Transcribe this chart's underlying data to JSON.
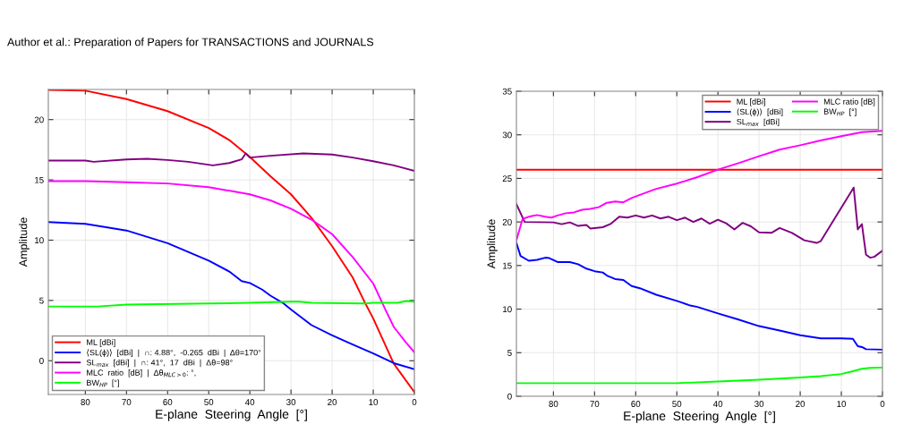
{
  "chart_data": [
    {
      "type": "line",
      "xlabel": "E-plane  Steering  Angle  [°]",
      "ylabel": "Amplitude",
      "xlim": [
        89,
        0
      ],
      "ylim": [
        -2.8,
        22.5
      ],
      "xticks": [
        80,
        70,
        60,
        50,
        40,
        30,
        20,
        10,
        0
      ],
      "yticks": [
        0,
        5,
        10,
        15,
        20
      ],
      "grid": true,
      "legend": "bottom left",
      "annotations": [
        "Author et al.: Preparation of Papers for TRANSACTIONS and JOURNALS"
      ],
      "series": [
        {
          "name": "ML [dBi]",
          "color": "#ff0000",
          "x": [
            89,
            80,
            70,
            60,
            50,
            45,
            40,
            35,
            30,
            25,
            20,
            15,
            12,
            10,
            5,
            0
          ],
          "values": [
            22.47,
            22.4,
            21.7,
            20.7,
            19.3,
            18.3,
            16.9,
            15.3,
            13.8,
            11.85,
            9.5,
            6.9,
            4.8,
            3.5,
            -0.25,
            -2.6
          ]
        },
        {
          "name": "⟨SL(ϕ)⟩  [dBi]  |  ∩: 4.88°,  -0.265  dBi  |  Δθ=170°",
          "color": "#0000ff",
          "x": [
            89,
            80,
            70,
            60,
            50,
            45,
            42,
            40,
            37,
            35,
            32,
            30,
            25,
            20,
            15,
            10,
            5,
            0
          ],
          "values": [
            11.5,
            11.35,
            10.8,
            9.75,
            8.3,
            7.4,
            6.6,
            6.45,
            5.9,
            5.4,
            4.8,
            4.25,
            2.95,
            2.1,
            1.35,
            0.6,
            -0.2,
            -0.7
          ]
        },
        {
          "name": "SL$_{max}$  [dBi]  |  ∩: 41°,  17  dBi  |  Δθ=98°",
          "color": "#800080",
          "x": [
            89,
            80,
            78,
            70,
            65,
            60,
            55,
            49,
            45,
            42,
            41,
            40,
            35,
            27,
            20,
            15,
            10,
            5,
            0
          ],
          "values": [
            16.6,
            16.6,
            16.5,
            16.7,
            16.75,
            16.65,
            16.5,
            16.2,
            16.4,
            16.7,
            17.2,
            16.85,
            17.0,
            17.2,
            17.1,
            16.85,
            16.55,
            16.2,
            15.75
          ]
        },
        {
          "name": "MLC  ratio  [dB]  |  Δθ$_{MLC>0}$: °,",
          "color": "#ff00ff",
          "x": [
            89,
            80,
            70,
            60,
            50,
            40,
            35,
            30,
            25,
            20,
            15,
            10,
            7,
            5,
            2,
            0
          ],
          "values": [
            14.9,
            14.9,
            14.8,
            14.7,
            14.4,
            13.8,
            13.3,
            12.6,
            11.7,
            10.5,
            8.6,
            6.4,
            4.2,
            2.8,
            1.5,
            0.7
          ]
        },
        {
          "name": "BW$_{HP}$  [°]",
          "color": "#00ff00",
          "x": [
            89,
            77,
            70,
            50,
            40,
            30,
            28,
            25,
            12,
            10,
            4,
            2,
            0
          ],
          "values": [
            4.5,
            4.5,
            4.65,
            4.75,
            4.8,
            4.9,
            4.9,
            4.8,
            4.75,
            4.8,
            4.8,
            4.95,
            4.9
          ]
        }
      ]
    },
    {
      "type": "line",
      "xlabel": "E-plane  Steering  Angle  [°]",
      "ylabel": "Amplitude",
      "xlim": [
        89,
        0
      ],
      "ylim": [
        0,
        35
      ],
      "xticks": [
        80,
        70,
        60,
        50,
        40,
        30,
        20,
        10,
        0
      ],
      "yticks": [
        0,
        5,
        10,
        15,
        20,
        25,
        30,
        35
      ],
      "grid": true,
      "legend": "top right",
      "series": [
        {
          "name": "ML [dBi]",
          "color": "#ff0000",
          "x": [
            89,
            0
          ],
          "values": [
            26,
            26
          ]
        },
        {
          "name": "⟨SL(ϕ)⟩  [dBi]",
          "color": "#0000ff",
          "x": [
            89,
            88,
            86,
            84,
            82,
            81,
            79,
            76,
            74,
            72,
            70,
            68,
            67,
            65,
            63,
            61,
            59,
            55,
            50,
            47,
            45,
            40,
            35,
            30,
            25,
            20,
            15,
            10,
            7.2,
            6,
            5,
            4,
            0
          ],
          "values": [
            17.6,
            16.1,
            15.55,
            15.65,
            15.9,
            15.85,
            15.4,
            15.4,
            15.15,
            14.65,
            14.35,
            14.2,
            13.85,
            13.45,
            13.35,
            12.65,
            12.4,
            11.65,
            10.95,
            10.45,
            10.25,
            9.5,
            8.8,
            8.05,
            7.55,
            7.0,
            6.65,
            6.65,
            6.6,
            5.75,
            5.65,
            5.4,
            5.35
          ]
        },
        {
          "name": "SL$_{max}$  [dBi]",
          "color": "#800080",
          "x": [
            89,
            87,
            80,
            78,
            76,
            74,
            72,
            71,
            68,
            66,
            64,
            62,
            60,
            58,
            56,
            54,
            52,
            50,
            48,
            46,
            44,
            42,
            40,
            38,
            36,
            34,
            32,
            30,
            27,
            25,
            22,
            19,
            16,
            15,
            7,
            6,
            5,
            4,
            3,
            2,
            0
          ],
          "values": [
            22.05,
            20.0,
            19.95,
            19.75,
            19.95,
            19.55,
            19.65,
            19.25,
            19.4,
            19.8,
            20.6,
            20.5,
            20.75,
            20.5,
            20.75,
            20.4,
            20.6,
            20.2,
            20.5,
            20.0,
            20.4,
            19.8,
            20.25,
            19.85,
            19.15,
            19.9,
            19.5,
            18.8,
            18.75,
            19.3,
            18.75,
            17.9,
            17.6,
            17.8,
            23.95,
            19.15,
            19.75,
            16.25,
            15.9,
            16.0,
            16.7
          ]
        },
        {
          "name": "MLC ratio [dB]",
          "color": "#ff00ff",
          "x": [
            89,
            87.5,
            86,
            84,
            82,
            80.5,
            79,
            77,
            75,
            73,
            71,
            69,
            67,
            65,
            63,
            61,
            59,
            55,
            50,
            45,
            40,
            35,
            30,
            25,
            20,
            15,
            10,
            5,
            0
          ],
          "values": [
            17.9,
            20.35,
            20.6,
            20.8,
            20.6,
            20.5,
            20.75,
            21.0,
            21.1,
            21.4,
            21.5,
            21.7,
            22.2,
            22.35,
            22.25,
            22.75,
            23.1,
            23.8,
            24.4,
            25.15,
            26.0,
            26.75,
            27.55,
            28.3,
            28.8,
            29.35,
            29.85,
            30.3,
            30.45
          ]
        },
        {
          "name": "BW$_{HP}$  [°]",
          "color": "#00ff00",
          "x": [
            89,
            50,
            40,
            30,
            20,
            15,
            10,
            7,
            5,
            3,
            0
          ],
          "values": [
            1.5,
            1.5,
            1.7,
            1.9,
            2.15,
            2.3,
            2.55,
            2.9,
            3.15,
            3.25,
            3.3
          ]
        }
      ]
    }
  ]
}
